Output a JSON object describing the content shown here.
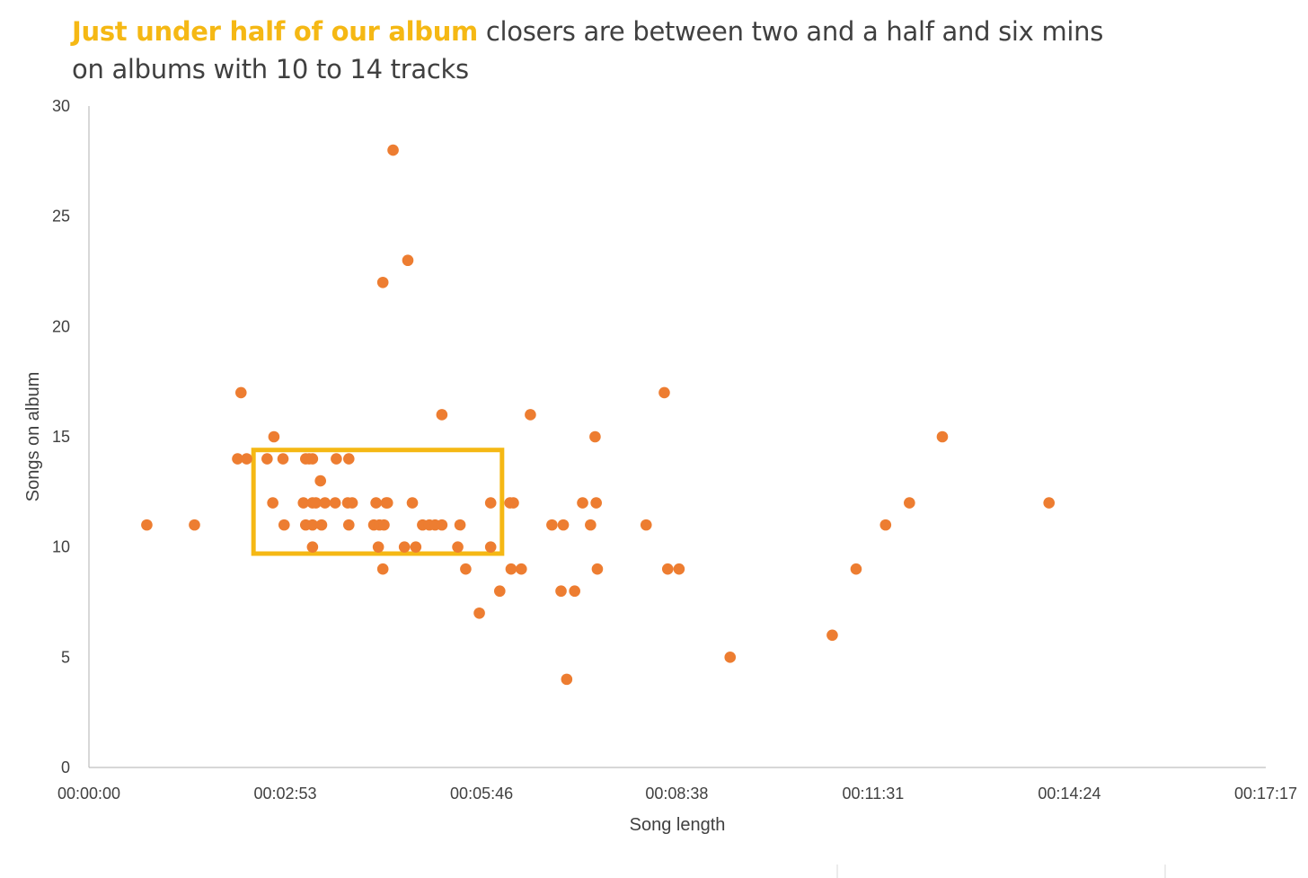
{
  "title": {
    "highlight": "Just under half of our album",
    "rest_line1": " closers are between two and a half and six mins",
    "line2": "on albums with 10 to 14 tracks"
  },
  "colors": {
    "highlight": "#f5b814",
    "point": "#ed7d31",
    "box": "#f5b814",
    "axis": "#bfbfbf",
    "text": "#404040"
  },
  "chart_data": {
    "type": "scatter",
    "title": "Just under half of our album closers are between two and a half and six mins on albums with 10 to 14 tracks",
    "xlabel": "Song length",
    "ylabel": "Songs on album",
    "x_unit": "seconds",
    "xlim": [
      0,
      1037
    ],
    "ylim": [
      0,
      30
    ],
    "x_ticks": [
      0,
      173,
      346,
      518,
      691,
      864,
      1037
    ],
    "x_tick_labels": [
      "00:00:00",
      "00:02:53",
      "00:05:46",
      "00:08:38",
      "00:11:31",
      "00:14:24",
      "00:17:17"
    ],
    "y_ticks": [
      0,
      5,
      10,
      15,
      20,
      25,
      30
    ],
    "y_tick_labels": [
      "0",
      "5",
      "10",
      "15",
      "20",
      "25",
      "30"
    ],
    "grid": false,
    "highlight_box": {
      "x": [
        145,
        364
      ],
      "y": [
        9.7,
        14.4
      ]
    },
    "points": [
      {
        "x": 51,
        "y": 11
      },
      {
        "x": 93,
        "y": 11
      },
      {
        "x": 134,
        "y": 17
      },
      {
        "x": 131,
        "y": 14
      },
      {
        "x": 139,
        "y": 14
      },
      {
        "x": 157,
        "y": 14
      },
      {
        "x": 163,
        "y": 15
      },
      {
        "x": 171,
        "y": 14
      },
      {
        "x": 162,
        "y": 12
      },
      {
        "x": 172,
        "y": 11
      },
      {
        "x": 191,
        "y": 14
      },
      {
        "x": 194,
        "y": 14
      },
      {
        "x": 197,
        "y": 14
      },
      {
        "x": 189,
        "y": 12
      },
      {
        "x": 197,
        "y": 12
      },
      {
        "x": 200,
        "y": 12
      },
      {
        "x": 208,
        "y": 12
      },
      {
        "x": 204,
        "y": 13
      },
      {
        "x": 191,
        "y": 11
      },
      {
        "x": 197,
        "y": 11
      },
      {
        "x": 205,
        "y": 11
      },
      {
        "x": 197,
        "y": 10
      },
      {
        "x": 218,
        "y": 14
      },
      {
        "x": 229,
        "y": 14
      },
      {
        "x": 217,
        "y": 12
      },
      {
        "x": 228,
        "y": 12
      },
      {
        "x": 232,
        "y": 12
      },
      {
        "x": 229,
        "y": 11
      },
      {
        "x": 253,
        "y": 12
      },
      {
        "x": 262,
        "y": 12
      },
      {
        "x": 263,
        "y": 12
      },
      {
        "x": 251,
        "y": 11
      },
      {
        "x": 256,
        "y": 11
      },
      {
        "x": 260,
        "y": 11
      },
      {
        "x": 255,
        "y": 10
      },
      {
        "x": 259,
        "y": 9
      },
      {
        "x": 259,
        "y": 22
      },
      {
        "x": 268,
        "y": 28
      },
      {
        "x": 281,
        "y": 23
      },
      {
        "x": 285,
        "y": 12
      },
      {
        "x": 278,
        "y": 10
      },
      {
        "x": 288,
        "y": 10
      },
      {
        "x": 294,
        "y": 11
      },
      {
        "x": 300,
        "y": 11
      },
      {
        "x": 305,
        "y": 11
      },
      {
        "x": 311,
        "y": 11
      },
      {
        "x": 311,
        "y": 16
      },
      {
        "x": 327,
        "y": 11
      },
      {
        "x": 325,
        "y": 10
      },
      {
        "x": 332,
        "y": 9
      },
      {
        "x": 354,
        "y": 12
      },
      {
        "x": 354,
        "y": 10
      },
      {
        "x": 362,
        "y": 8
      },
      {
        "x": 344,
        "y": 7
      },
      {
        "x": 371,
        "y": 12
      },
      {
        "x": 374,
        "y": 12
      },
      {
        "x": 372,
        "y": 9
      },
      {
        "x": 381,
        "y": 9
      },
      {
        "x": 389,
        "y": 16
      },
      {
        "x": 408,
        "y": 11
      },
      {
        "x": 418,
        "y": 11
      },
      {
        "x": 416,
        "y": 8
      },
      {
        "x": 428,
        "y": 8
      },
      {
        "x": 421,
        "y": 4
      },
      {
        "x": 435,
        "y": 12
      },
      {
        "x": 447,
        "y": 12
      },
      {
        "x": 442,
        "y": 11
      },
      {
        "x": 446,
        "y": 15
      },
      {
        "x": 448,
        "y": 9
      },
      {
        "x": 491,
        "y": 11
      },
      {
        "x": 507,
        "y": 17
      },
      {
        "x": 510,
        "y": 9
      },
      {
        "x": 520,
        "y": 9
      },
      {
        "x": 565,
        "y": 5
      },
      {
        "x": 655,
        "y": 6
      },
      {
        "x": 676,
        "y": 9
      },
      {
        "x": 702,
        "y": 11
      },
      {
        "x": 723,
        "y": 12
      },
      {
        "x": 752,
        "y": 15
      },
      {
        "x": 846,
        "y": 12
      }
    ]
  }
}
